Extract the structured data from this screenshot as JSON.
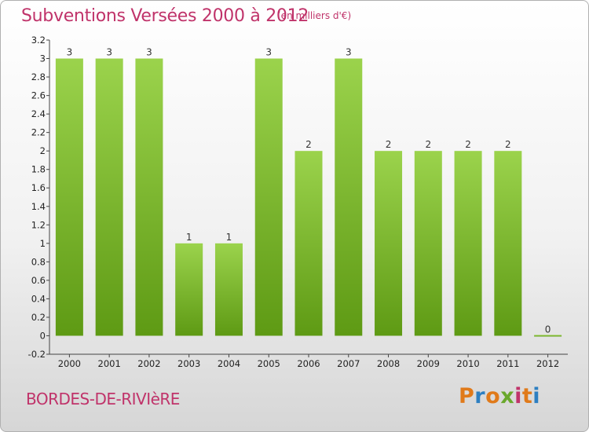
{
  "header": {
    "title": "Subventions Versées 2000 à 2012",
    "subtitle": "(en milliers d'€)"
  },
  "footer": {
    "commune": "BORDES-DE-RIVIèRE",
    "logo_text": "Proxiti"
  },
  "colors": {
    "title": "#c0336a",
    "bar_top": "#9bd34c",
    "bar_bottom": "#5e9a14",
    "logo": [
      "#e07a1a",
      "#2d7fc1",
      "#e07a1a",
      "#6aa82c",
      "#c0336a",
      "#e07a1a",
      "#2d7fc1"
    ]
  },
  "chart_data": {
    "type": "bar",
    "title": "Subventions Versées 2000 à 2012",
    "subtitle": "(en milliers d'€)",
    "categories": [
      "2000",
      "2001",
      "2002",
      "2003",
      "2004",
      "2005",
      "2006",
      "2007",
      "2008",
      "2009",
      "2010",
      "2011",
      "2012"
    ],
    "values": [
      3,
      3,
      3,
      1,
      1,
      3,
      2,
      3,
      2,
      2,
      2,
      2,
      0
    ],
    "data_labels": [
      "3",
      "3",
      "3",
      "1",
      "1",
      "3",
      "2",
      "3",
      "2",
      "2",
      "2",
      "2",
      "0"
    ],
    "ylim": [
      -0.2,
      3.2
    ],
    "yticks": [
      "3.2",
      "3",
      "2.8",
      "2.6",
      "2.4",
      "2.2",
      "2",
      "1.8",
      "1.6",
      "1.4",
      "1.2",
      "1",
      "0.8",
      "0.6",
      "0.4",
      "0.2",
      "0",
      "-0.2"
    ],
    "ytick_values": [
      3.2,
      3,
      2.8,
      2.6,
      2.4,
      2.2,
      2,
      1.8,
      1.6,
      1.4,
      1.2,
      1,
      0.8,
      0.6,
      0.4,
      0.2,
      0,
      -0.2
    ],
    "xlabel": "",
    "ylabel": "",
    "grid": false,
    "legend": "none"
  }
}
